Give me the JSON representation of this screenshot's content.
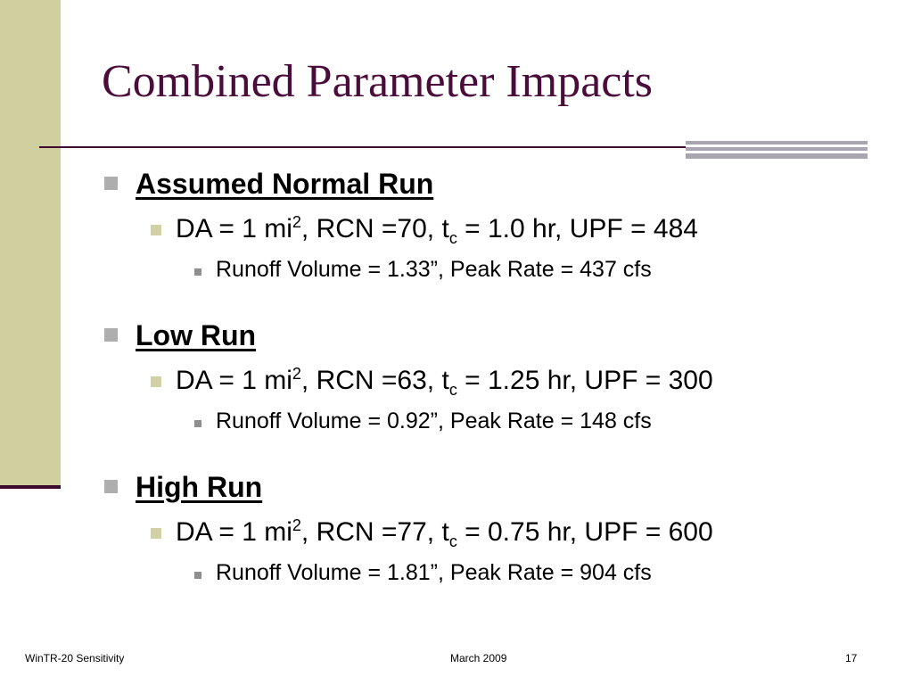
{
  "slide": {
    "title": "Combined Parameter Impacts",
    "runs": [
      {
        "heading": "Assumed Normal Run",
        "params": {
          "da_prefix": "DA = 1 mi",
          "da_exp": "2",
          "rcn": ", RCN =70, t",
          "tc_sub": "c",
          "rest": " = 1.0 hr, UPF = 484"
        },
        "result": "Runoff Volume = 1.33”, Peak Rate = 437 cfs"
      },
      {
        "heading": "Low Run",
        "params": {
          "da_prefix": "DA = 1 mi",
          "da_exp": "2",
          "rcn": ", RCN =63, t",
          "tc_sub": "c",
          "rest": " = 1.25 hr, UPF = 300"
        },
        "result": "Runoff Volume = 0.92”, Peak Rate = 148 cfs"
      },
      {
        "heading": "High Run",
        "params": {
          "da_prefix": "DA = 1 mi",
          "da_exp": "2",
          "rcn": ", RCN =77, t",
          "tc_sub": "c",
          "rest": " = 0.75 hr, UPF = 600"
        },
        "result": "Runoff Volume = 1.81”, Peak Rate = 904 cfs"
      }
    ],
    "footer": {
      "left": "WinTR-20 Sensitivity",
      "center": "March 2009",
      "page": "17"
    },
    "colors": {
      "title": "#4a0c3a",
      "sidebar": "#d0cfa0",
      "rule": "#3c0a2e",
      "corner_bar": "#a9a6b1"
    }
  }
}
